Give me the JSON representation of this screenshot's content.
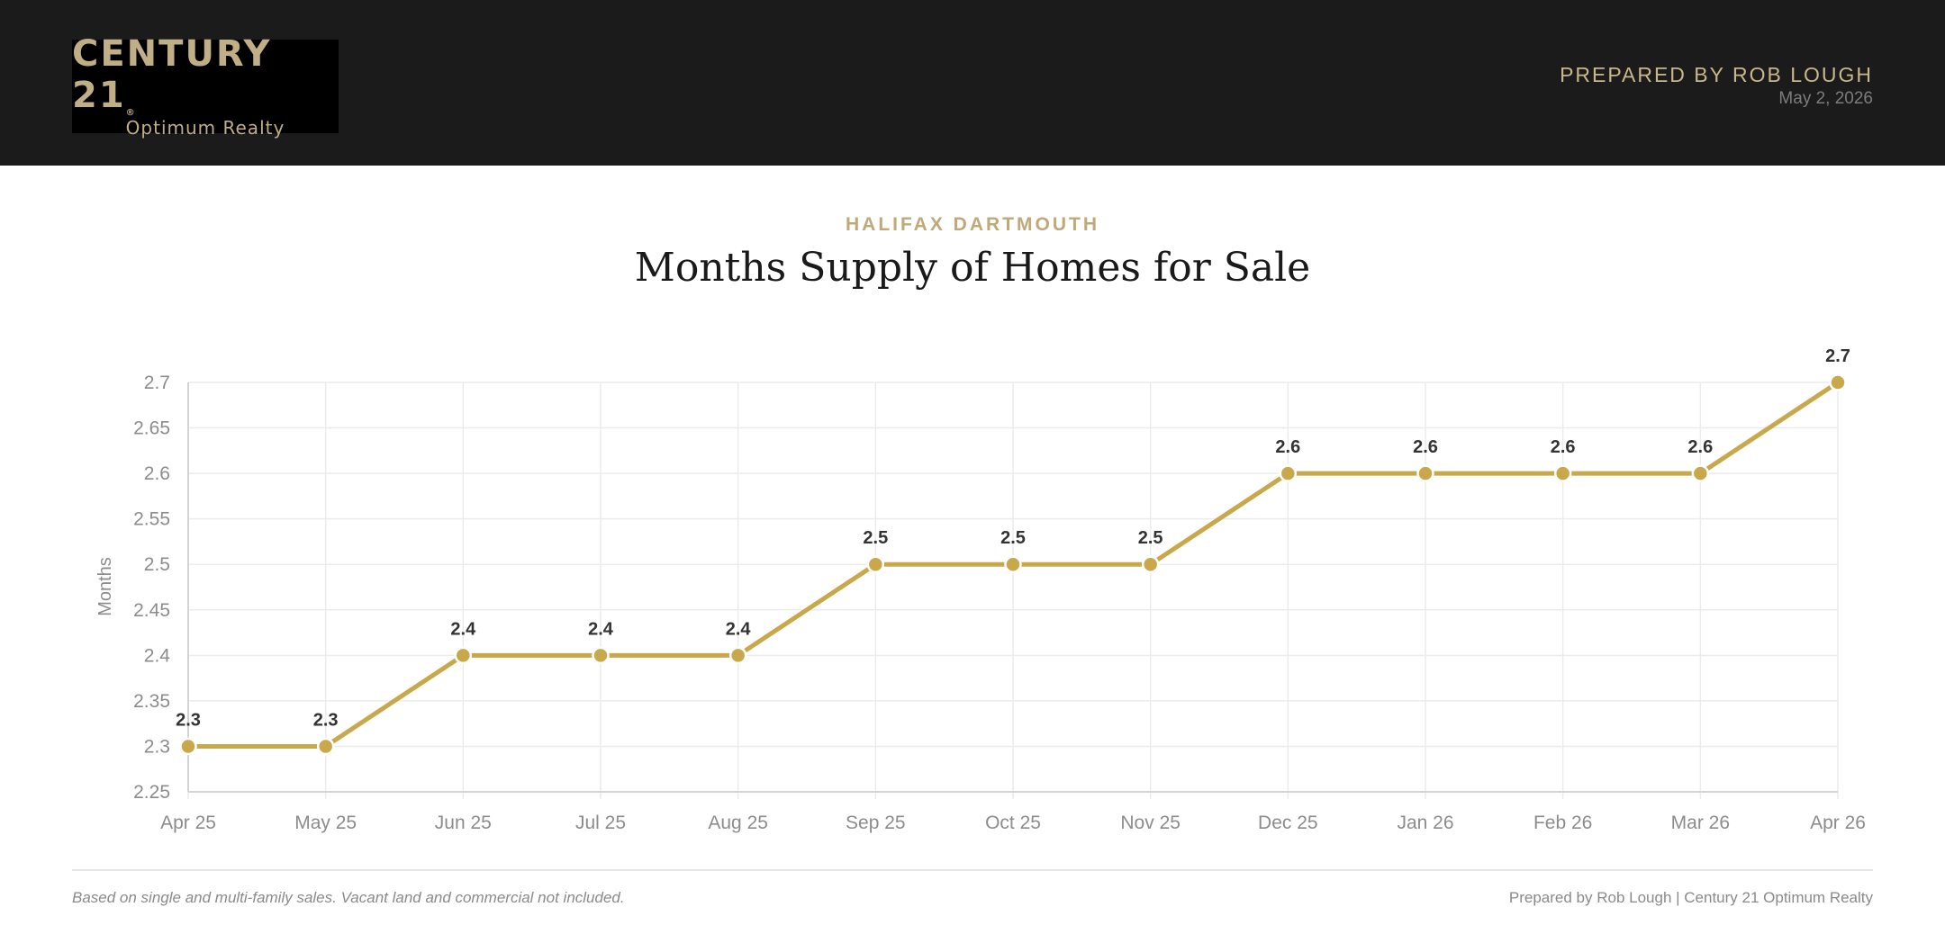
{
  "header": {
    "logo_brand": "CENTURY 21",
    "logo_registered": "®",
    "logo_sub": "Optimum Realty",
    "prepared_by": "PREPARED BY ROB LOUGH",
    "date": "May 2, 2026"
  },
  "region": "HALIFAX DARTMOUTH",
  "title": "Months Supply of Homes for Sale",
  "footer": {
    "note": "Based on single and multi-family sales. Vacant land and commercial not included.",
    "credit": "Prepared by Rob Lough | Century 21 Optimum Realty"
  },
  "colors": {
    "accent": "#c8a84b",
    "header_bg": "#1b1b1b",
    "grid": "#ececec"
  },
  "chart_data": {
    "type": "line",
    "ylabel": "Months",
    "xlabel": "",
    "categories": [
      "Apr 25",
      "May 25",
      "Jun 25",
      "Jul 25",
      "Aug 25",
      "Sep 25",
      "Oct 25",
      "Nov 25",
      "Dec 25",
      "Jan 26",
      "Feb 26",
      "Mar 26",
      "Apr 26"
    ],
    "values": [
      2.3,
      2.3,
      2.4,
      2.4,
      2.4,
      2.5,
      2.5,
      2.5,
      2.6,
      2.6,
      2.6,
      2.6,
      2.7
    ],
    "ylim": [
      2.25,
      2.7
    ],
    "yticks": [
      "2.25",
      "2.3",
      "2.35",
      "2.4",
      "2.45",
      "2.5",
      "2.55",
      "2.6",
      "2.65",
      "2.7"
    ],
    "grid": true,
    "data_labels": true
  }
}
